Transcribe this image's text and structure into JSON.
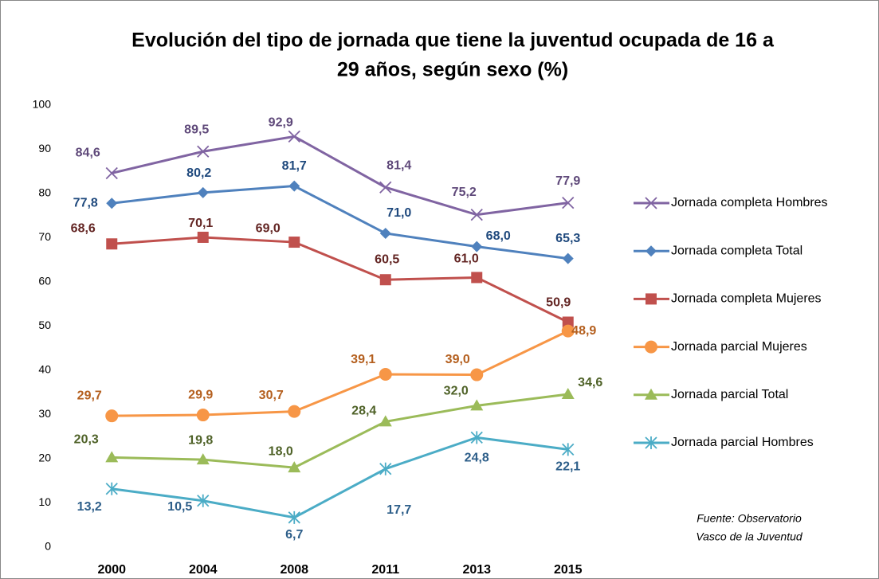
{
  "chart_data": {
    "type": "line",
    "title": [
      "Evolución del tipo de jornada que tiene la juventud ocupada de 16 a",
      "29 años, según sexo (%)"
    ],
    "categories": [
      "2000",
      "2004",
      "2008",
      "2011",
      "2013",
      "2015"
    ],
    "ylim": [
      0,
      100
    ],
    "yticks": [
      0,
      10,
      20,
      30,
      40,
      50,
      60,
      70,
      80,
      90,
      100
    ],
    "grid": false,
    "legend": "right",
    "series": [
      {
        "name": "Jornada completa Hombres",
        "color": "#8064a2",
        "label_color": "#5f497a",
        "marker": "x",
        "values": [
          84.6,
          89.5,
          92.9,
          81.4,
          75.2,
          77.9
        ],
        "value_labels": [
          "84,6",
          "89,5",
          "92,9",
          "81,4",
          "75,2",
          "77,9"
        ]
      },
      {
        "name": "Jornada completa Total",
        "color": "#4f81bd",
        "label_color": "#1f497d",
        "marker": "diamond",
        "values": [
          77.8,
          80.2,
          81.7,
          71.0,
          68.0,
          65.3
        ],
        "value_labels": [
          "77,8",
          "80,2",
          "81,7",
          "71,0",
          "68,0",
          "65,3"
        ]
      },
      {
        "name": "Jornada completa Mujeres",
        "color": "#c0504d",
        "label_color": "#632523",
        "marker": "square",
        "values": [
          68.6,
          70.1,
          69.0,
          60.5,
          61.0,
          50.9
        ],
        "value_labels": [
          "68,6",
          "70,1",
          "69,0",
          "60,5",
          "61,0",
          "50,9"
        ]
      },
      {
        "name": "Jornada parcial Mujeres",
        "color": "#f79646",
        "label_color": "#b45f1e",
        "marker": "circle",
        "values": [
          29.7,
          29.9,
          30.7,
          39.1,
          39.0,
          48.9
        ],
        "value_labels": [
          "29,7",
          "29,9",
          "30,7",
          "39,1",
          "39,0",
          "48,9"
        ]
      },
      {
        "name": "Jornada parcial Total",
        "color": "#9bbb59",
        "label_color": "#4f6228",
        "marker": "triangle",
        "values": [
          20.3,
          19.8,
          18.0,
          28.4,
          32.0,
          34.6
        ],
        "value_labels": [
          "20,3",
          "19,8",
          "18,0",
          "28,4",
          "32,0",
          "34,6"
        ]
      },
      {
        "name": "Jornada parcial Hombres",
        "color": "#4bacc6",
        "label_color": "#2e5f8a",
        "marker": "star",
        "values": [
          13.2,
          10.5,
          6.7,
          17.7,
          24.8,
          22.1
        ],
        "value_labels": [
          "13,2",
          "10,5",
          "6,7",
          "17,7",
          "24,8",
          "22,1"
        ]
      }
    ],
    "source": [
      "Fuente: Observatorio",
      "Vasco de la Juventud"
    ]
  }
}
